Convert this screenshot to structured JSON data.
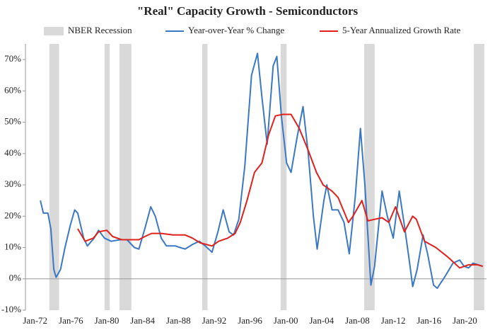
{
  "chart_data": {
    "type": "line",
    "title": "\"Real\" Capacity Growth - Semiconductors",
    "xlim": [
      "Dec-70",
      "Jun-22"
    ],
    "xticks": [
      "Jan-72",
      "Jan-76",
      "Jan-80",
      "Jan-84",
      "Jan-88",
      "Jan-92",
      "Jan-96",
      "Jan-00",
      "Jan-04",
      "Jan-08",
      "Jan-12",
      "Jan-16",
      "Jan-20"
    ],
    "ylim": [
      -10,
      75
    ],
    "yticks": [
      {
        "value": -10,
        "label": "-10%"
      },
      {
        "value": 0,
        "label": "0%"
      },
      {
        "value": 10,
        "label": "10%"
      },
      {
        "value": 20,
        "label": "20%"
      },
      {
        "value": 30,
        "label": "30%"
      },
      {
        "value": 40,
        "label": "40%"
      },
      {
        "value": 50,
        "label": "50%"
      },
      {
        "value": 60,
        "label": "60%"
      },
      {
        "value": 70,
        "label": "70%"
      }
    ],
    "recessions": {
      "name": "NBER Recession",
      "color": "#d9d9d9",
      "periods": [
        [
          "Aug-73",
          "Sep-74"
        ],
        [
          "Oct-79",
          "May-80"
        ],
        [
          "Jun-81",
          "Oct-82"
        ],
        [
          "Sep-90",
          "Apr-91"
        ],
        [
          "Jun-99",
          "Feb-00"
        ],
        [
          "Oct-08",
          "Dec-09"
        ],
        [
          "Jan-21",
          "Mar-22"
        ]
      ]
    },
    "series": [
      {
        "name": "Year-over-Year % Change",
        "color": "#3a78c4",
        "x": [
          "Aug-72",
          "Dec-72",
          "Jun-73",
          "Oct-73",
          "Feb-74",
          "May-74",
          "Nov-74",
          "May-75",
          "Dec-75",
          "Jun-76",
          "Oct-76",
          "Jun-77",
          "Nov-77",
          "Aug-78",
          "Feb-79",
          "Oct-79",
          "Jul-80",
          "Jul-81",
          "Apr-82",
          "Feb-83",
          "Aug-83",
          "Apr-84",
          "Dec-84",
          "Jun-85",
          "Feb-86",
          "Sep-86",
          "Sep-87",
          "Mar-88",
          "Oct-88",
          "Aug-89",
          "May-90",
          "Jan-91",
          "Oct-91",
          "Jun-92",
          "Jan-93",
          "Sep-93",
          "Mar-94",
          "Oct-94",
          "Jun-95",
          "Mar-96",
          "Nov-96",
          "May-97",
          "Dec-97",
          "Aug-98",
          "Jan-99",
          "Jul-99",
          "Feb-00",
          "Aug-00",
          "Apr-01",
          "Dec-01",
          "Jul-02",
          "Feb-03",
          "Jul-03",
          "Apr-04",
          "Aug-04",
          "Mar-05",
          "Nov-05",
          "Jul-06",
          "Feb-07",
          "Oct-07",
          "May-08",
          "Nov-08",
          "Jul-09",
          "Dec-09",
          "Oct-10",
          "May-11",
          "Jan-12",
          "Sep-12",
          "Apr-13",
          "Nov-13",
          "Mar-14",
          "Sep-14",
          "May-15",
          "Nov-15",
          "Jul-16",
          "Dec-16",
          "Nov-17",
          "Sep-18",
          "Jun-19",
          "Dec-19",
          "Jun-20",
          "Dec-20",
          "Jan-22"
        ],
        "values": [
          25,
          21,
          21,
          16,
          3,
          0.5,
          3,
          10,
          17,
          22,
          21,
          13,
          10.5,
          13,
          15.5,
          13,
          12,
          12.5,
          12.5,
          10,
          9.5,
          16,
          23,
          20,
          13,
          10.5,
          10.5,
          10,
          9.5,
          11,
          12,
          10.5,
          8.5,
          15,
          22,
          15,
          14,
          19,
          36,
          65,
          72,
          58,
          43,
          68,
          71,
          52,
          37,
          34,
          45,
          55,
          40,
          20,
          9.5,
          25,
          30,
          22,
          22,
          18,
          8,
          26,
          48,
          30,
          -2,
          4,
          28,
          20,
          13,
          28,
          17,
          5,
          -2.5,
          3,
          14,
          8,
          -2,
          -3,
          1,
          5,
          6,
          4,
          3.5,
          5,
          4
        ]
      },
      {
        "name": "5-Year Annualized Growth Rate",
        "color": "#e0201b",
        "x": [
          "Oct-76",
          "Aug-77",
          "Jul-78",
          "Feb-79",
          "Jan-80",
          "Sep-80",
          "Sep-81",
          "Sep-82",
          "Aug-83",
          "Apr-84",
          "Jan-85",
          "Feb-86",
          "Jun-87",
          "Oct-88",
          "Aug-89",
          "Jun-90",
          "Oct-91",
          "Jul-92",
          "Jul-93",
          "May-94",
          "Dec-94",
          "Sep-95",
          "Jul-96",
          "May-97",
          "Feb-98",
          "Nov-98",
          "Sep-99",
          "Aug-00",
          "Jul-01",
          "Jul-02",
          "Jun-03",
          "Mar-04",
          "Mar-05",
          "Nov-05",
          "Jan-07",
          "Jul-07",
          "Jul-08",
          "Mar-09",
          "Dec-09",
          "Oct-10",
          "Jul-11",
          "Apr-12",
          "Apr-13",
          "Mar-14",
          "Aug-14",
          "Jul-15",
          "Oct-16",
          "Feb-18",
          "Jun-19",
          "Jun-20",
          "Jun-21",
          "Jan-22"
        ],
        "values": [
          16,
          12,
          13,
          15,
          15.5,
          13.5,
          12.5,
          12.5,
          12.5,
          13.5,
          14.5,
          14.5,
          14,
          14,
          13,
          11.5,
          10.5,
          12,
          13,
          14.5,
          18,
          25,
          34,
          37,
          46,
          52,
          52.5,
          52.5,
          48,
          41,
          34,
          30,
          28,
          26,
          18,
          20,
          25,
          18.5,
          19,
          19.5,
          18,
          23,
          15,
          20,
          19,
          12,
          10,
          7,
          3.5,
          4.5,
          4.5,
          4
        ]
      }
    ]
  }
}
